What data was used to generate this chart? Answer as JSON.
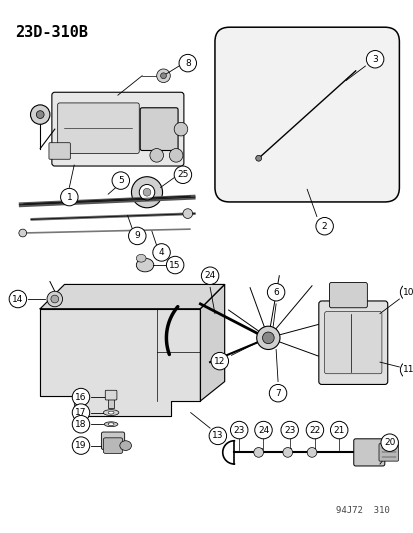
{
  "title": "23D-310B",
  "watermark": "94J72  310",
  "bg_color": "#ffffff",
  "line_color": "#000000",
  "figsize": [
    4.14,
    5.33
  ],
  "dpi": 100
}
